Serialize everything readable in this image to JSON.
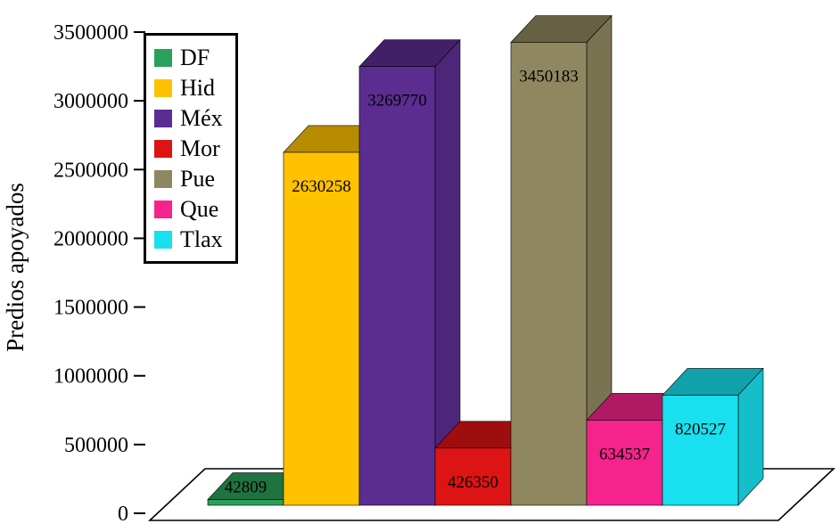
{
  "chart_data": {
    "type": "bar",
    "style": "3d",
    "ylabel": "Predios apoyados",
    "xlabel": "",
    "categories": [
      "DF",
      "Hid",
      "Méx",
      "Mor",
      "Pue",
      "Que",
      "Tlax"
    ],
    "values": [
      42809,
      2630258,
      3269770,
      426350,
      3450183,
      634537,
      820527
    ],
    "bar_value_labels": [
      "42809",
      "2630258",
      "3269770",
      "426350",
      "3450183",
      "634537",
      "820527"
    ],
    "colors": [
      "#2AA05A",
      "#FFC200",
      "#5B2D90",
      "#DC1414",
      "#8F875F",
      "#F5248C",
      "#18E0EE"
    ],
    "ylim": [
      0,
      3500000
    ],
    "yticks": [
      0,
      500000,
      1000000,
      1500000,
      2000000,
      2500000,
      3000000,
      3500000
    ],
    "ytick_labels": [
      "0",
      "500000",
      "1000000",
      "1500000",
      "2000000",
      "2500000",
      "3000000",
      "3500000"
    ],
    "grid": false,
    "legend_position": "top-left",
    "background_color": "#ffffff",
    "axis_color": "#000000"
  }
}
